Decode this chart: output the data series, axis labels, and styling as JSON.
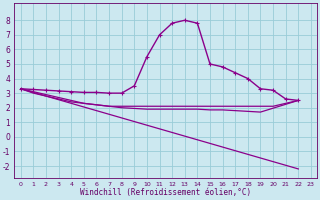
{
  "background_color": "#cce8f0",
  "grid_color": "#99ccd8",
  "line_color": "#8b008b",
  "xlim": [
    -0.5,
    23.5
  ],
  "ylim": [
    -2.8,
    9.2
  ],
  "xtick_values": [
    0,
    1,
    2,
    3,
    4,
    5,
    6,
    7,
    8,
    9,
    10,
    11,
    12,
    13,
    14,
    15,
    16,
    17,
    18,
    19,
    20,
    21,
    22,
    23
  ],
  "ytick_values": [
    -2,
    -1,
    0,
    1,
    2,
    3,
    4,
    5,
    6,
    7,
    8
  ],
  "xlabel": "Windchill (Refroidissement éolien,°C)",
  "series": [
    {
      "x": [
        0,
        1,
        2,
        3,
        4,
        5,
        6,
        7,
        8,
        9,
        10,
        11,
        12,
        13,
        14,
        15,
        16,
        17,
        18,
        19,
        20,
        21,
        22
      ],
      "y": [
        3.3,
        3.25,
        3.2,
        3.15,
        3.1,
        3.05,
        3.05,
        3.0,
        3.0,
        3.5,
        5.5,
        7.0,
        7.8,
        8.0,
        7.8,
        5.0,
        4.8,
        4.4,
        4.0,
        3.3,
        3.2,
        2.6,
        2.5
      ],
      "marker": "+",
      "ms": 3.5,
      "lw": 1.0
    },
    {
      "x": [
        0,
        1,
        2,
        3,
        4,
        5,
        6,
        7,
        8,
        9,
        10,
        11,
        12,
        13,
        14,
        15,
        16,
        17,
        18,
        19,
        20,
        21,
        22
      ],
      "y": [
        3.3,
        3.1,
        2.9,
        2.7,
        2.5,
        2.3,
        2.2,
        2.1,
        2.1,
        2.1,
        2.1,
        2.1,
        2.1,
        2.1,
        2.1,
        2.1,
        2.1,
        2.1,
        2.1,
        2.1,
        2.1,
        2.3,
        2.5
      ],
      "marker": null,
      "ms": 0,
      "lw": 0.9
    },
    {
      "x": [
        0,
        1,
        2,
        3,
        4,
        5,
        6,
        7,
        8,
        9,
        10,
        11,
        12,
        13,
        14,
        15,
        16,
        17,
        18,
        19,
        22
      ],
      "y": [
        3.3,
        3.0,
        2.8,
        2.6,
        2.4,
        2.3,
        2.2,
        2.1,
        2.0,
        1.95,
        1.9,
        1.9,
        1.9,
        1.9,
        1.9,
        1.85,
        1.85,
        1.8,
        1.75,
        1.7,
        2.5
      ],
      "marker": null,
      "ms": 0,
      "lw": 0.9
    },
    {
      "x": [
        0,
        22
      ],
      "y": [
        3.3,
        -2.2
      ],
      "marker": null,
      "ms": 0,
      "lw": 0.9
    }
  ]
}
